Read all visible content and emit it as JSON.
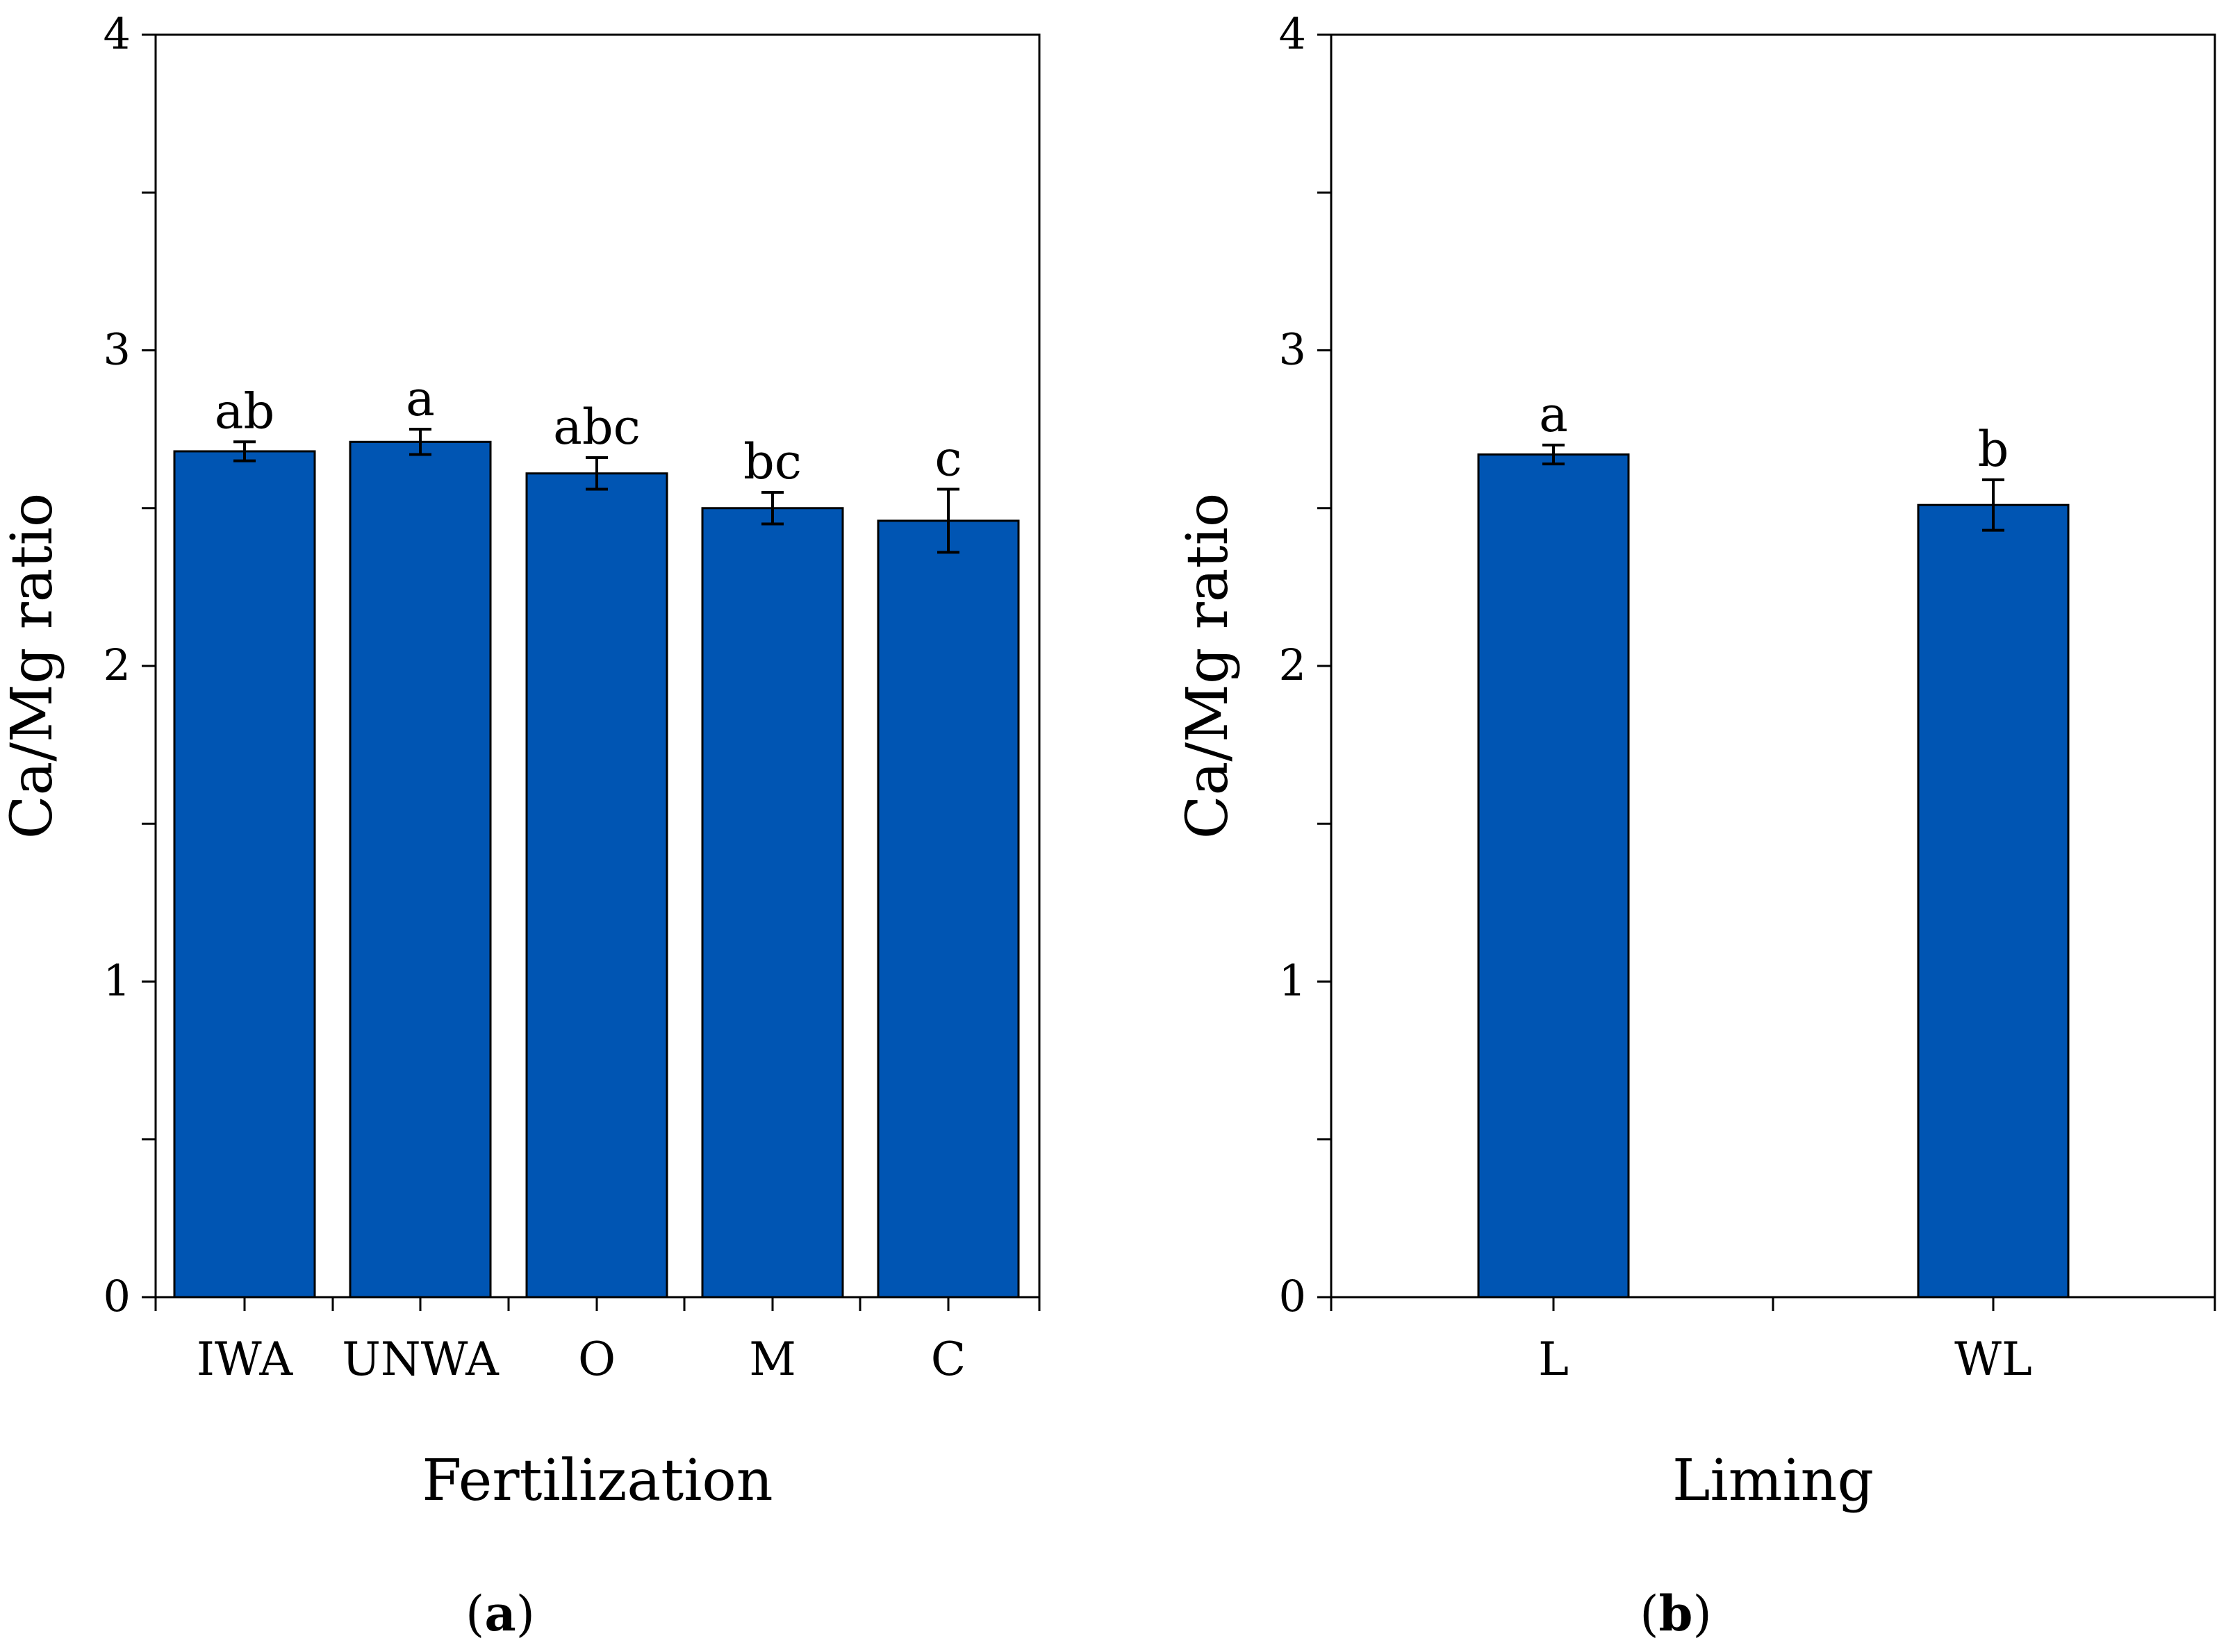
{
  "colors": {
    "bar": "#0055b3"
  },
  "chart_data": [
    {
      "type": "bar",
      "panel_label": "a",
      "xlabel": "Fertilization",
      "ylabel": "Ca/Mg ratio",
      "ylim": [
        0,
        4
      ],
      "yticks": [
        0,
        1,
        2,
        3,
        4
      ],
      "categories": [
        "IWA",
        "UNWA",
        "O",
        "M",
        "C"
      ],
      "values": [
        2.68,
        2.71,
        2.61,
        2.5,
        2.46
      ],
      "errors": [
        0.03,
        0.04,
        0.05,
        0.05,
        0.1
      ],
      "significance": [
        "ab",
        "a",
        "abc",
        "bc",
        "c"
      ]
    },
    {
      "type": "bar",
      "panel_label": "b",
      "xlabel": "Liming",
      "ylabel": "Ca/Mg ratio",
      "ylim": [
        0,
        4
      ],
      "yticks": [
        0,
        1,
        2,
        3,
        4
      ],
      "categories": [
        "L",
        "WL"
      ],
      "values": [
        2.67,
        2.51
      ],
      "errors": [
        0.03,
        0.08
      ],
      "significance": [
        "a",
        "b"
      ]
    }
  ]
}
